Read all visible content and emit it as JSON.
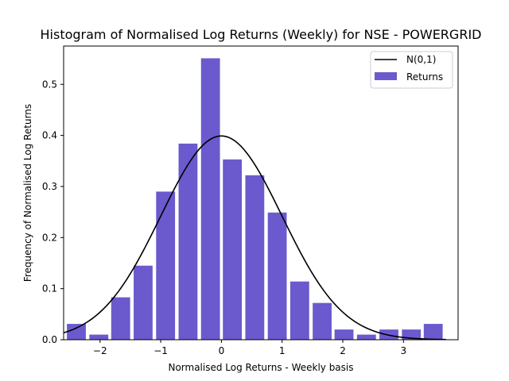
{
  "chart_data": {
    "type": "bar",
    "title": "Histogram of Normalised Log Returns (Weekly) for NSE - POWERGRID",
    "xlabel": "Normalised Log Returns - Weekly basis",
    "ylabel": "Frequency of Normalised Log Returns",
    "xlim": [
      -2.6,
      3.9
    ],
    "ylim": [
      0,
      0.575
    ],
    "xticks": [
      -2,
      -1,
      0,
      1,
      2,
      3
    ],
    "xtick_labels": [
      "−2",
      "−1",
      "0",
      "1",
      "2",
      "3"
    ],
    "yticks": [
      0.0,
      0.1,
      0.2,
      0.3,
      0.4,
      0.5
    ],
    "ytick_labels": [
      "0.0",
      "0.1",
      "0.2",
      "0.3",
      "0.4",
      "0.5"
    ],
    "bins": [
      {
        "x": -2.39,
        "value": 0.031
      },
      {
        "x": -2.02,
        "value": 0.01
      },
      {
        "x": -1.66,
        "value": 0.083
      },
      {
        "x": -1.29,
        "value": 0.145
      },
      {
        "x": -0.92,
        "value": 0.29
      },
      {
        "x": -0.55,
        "value": 0.384
      },
      {
        "x": -0.18,
        "value": 0.551
      },
      {
        "x": 0.18,
        "value": 0.353
      },
      {
        "x": 0.55,
        "value": 0.322
      },
      {
        "x": 0.92,
        "value": 0.249
      },
      {
        "x": 1.29,
        "value": 0.114
      },
      {
        "x": 1.66,
        "value": 0.072
      },
      {
        "x": 2.02,
        "value": 0.02
      },
      {
        "x": 2.39,
        "value": 0.01
      },
      {
        "x": 2.76,
        "value": 0.02
      },
      {
        "x": 3.13,
        "value": 0.02
      },
      {
        "x": 3.49,
        "value": 0.031
      }
    ],
    "bin_width": 0.367,
    "bar_width_fraction": 0.85,
    "curve": {
      "name": "N(0,1)",
      "x_range": [
        -2.6,
        3.7
      ],
      "mean": 0,
      "std": 1
    },
    "legend": {
      "location": "upper right",
      "entries": [
        {
          "name": "N(0,1)",
          "kind": "line"
        },
        {
          "name": "Returns",
          "kind": "patch"
        }
      ]
    },
    "grid": false,
    "colors": {
      "bars": "#6a5acd",
      "curve": "#000000",
      "axes": "#000000",
      "legend_border": "#cccccc"
    }
  }
}
